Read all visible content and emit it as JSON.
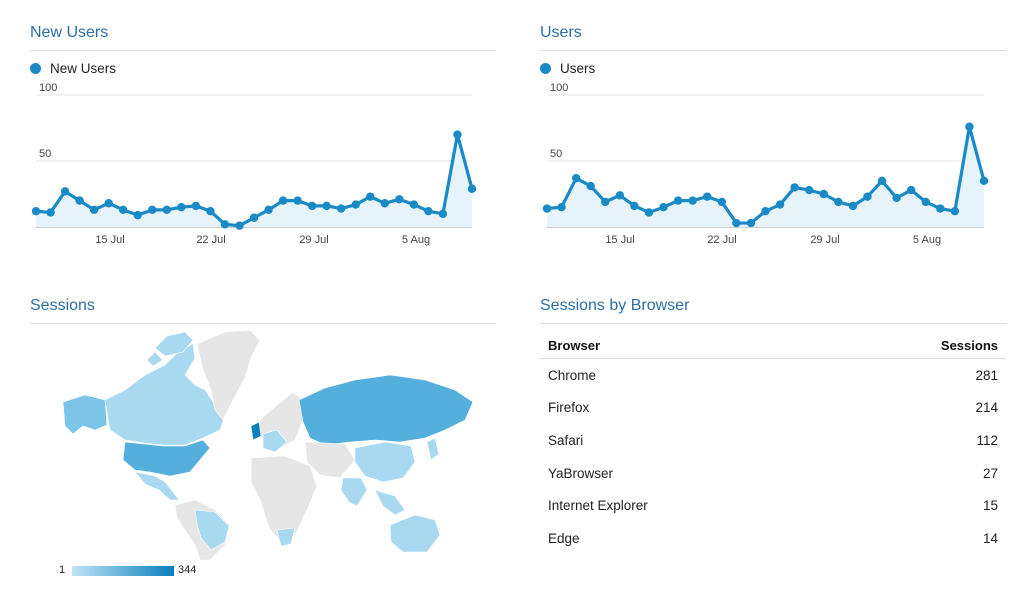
{
  "new_users_panel": {
    "title": "New Users",
    "legend": "New Users",
    "color": "#1a8ac7",
    "fill": "#e6f3fa"
  },
  "users_panel": {
    "title": "Users",
    "legend": "Users",
    "color": "#1a8ac7",
    "fill": "#e6f3fa"
  },
  "sessions_panel": {
    "title": "Sessions",
    "scale_min": "1",
    "scale_max": "344",
    "scale_colors": [
      "#bfe4f5",
      "#0a7fbd"
    ],
    "map_land_color": "#e6e6e6"
  },
  "browser_panel": {
    "title": "Sessions by Browser",
    "col_browser": "Browser",
    "col_sessions": "Sessions",
    "rows": [
      {
        "browser": "Chrome",
        "sessions": "281"
      },
      {
        "browser": "Firefox",
        "sessions": "214"
      },
      {
        "browser": "Safari",
        "sessions": "112"
      },
      {
        "browser": "YaBrowser",
        "sessions": "27"
      },
      {
        "browser": "Internet Explorer",
        "sessions": "15"
      },
      {
        "browser": "Edge",
        "sessions": "14"
      }
    ]
  },
  "chart_data": [
    {
      "type": "area",
      "title": "New Users",
      "x_tick_labels": [
        "15 Jul",
        "22 Jul",
        "29 Jul",
        "5 Aug"
      ],
      "y_tick_labels": [
        "50",
        "100"
      ],
      "ylim": [
        0,
        100
      ],
      "series": [
        {
          "name": "New Users",
          "values": [
            12,
            11,
            27,
            20,
            13,
            18,
            13,
            9,
            13,
            13,
            15,
            16,
            12,
            2,
            1,
            7,
            13,
            20,
            20,
            16,
            16,
            14,
            17,
            23,
            18,
            21,
            17,
            12,
            10,
            70,
            29
          ]
        }
      ]
    },
    {
      "type": "area",
      "title": "Users",
      "x_tick_labels": [
        "15 Jul",
        "22 Jul",
        "29 Jul",
        "5 Aug"
      ],
      "y_tick_labels": [
        "50",
        "100"
      ],
      "ylim": [
        0,
        100
      ],
      "series": [
        {
          "name": "Users",
          "values": [
            14,
            15,
            37,
            31,
            19,
            24,
            16,
            11,
            15,
            20,
            20,
            23,
            19,
            3,
            3,
            12,
            17,
            30,
            28,
            25,
            19,
            16,
            23,
            35,
            22,
            28,
            19,
            14,
            12,
            76,
            35
          ]
        }
      ]
    }
  ]
}
